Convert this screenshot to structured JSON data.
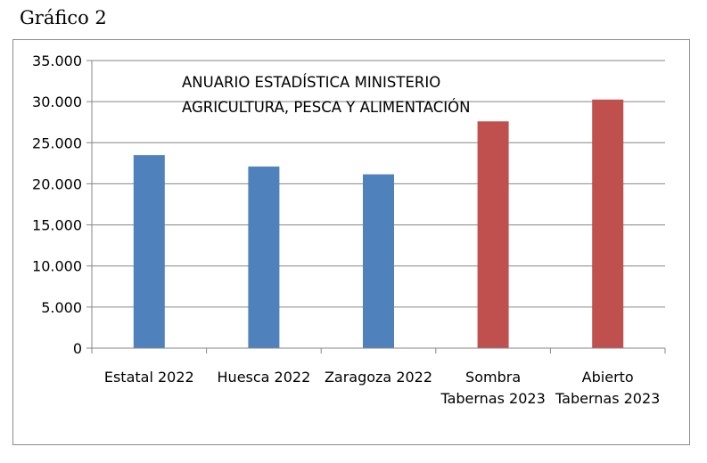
{
  "heading": "Gráfico 2",
  "chart_data": {
    "type": "bar",
    "title": "",
    "annotation": [
      "ANUARIO ESTADÍSTICA MINISTERIO",
      "AGRICULTURA, PESCA Y ALIMENTACIÓN"
    ],
    "categories": [
      [
        "Estatal 2022"
      ],
      [
        "Huesca 2022"
      ],
      [
        "Zaragoza 2022"
      ],
      [
        "Sombra",
        "Tabernas 2023"
      ],
      [
        "Abierto",
        "Tabernas 2023"
      ]
    ],
    "values": [
      23500,
      22100,
      21150,
      27600,
      30250
    ],
    "bar_colors": [
      "#4f81bd",
      "#4f81bd",
      "#4f81bd",
      "#c0504d",
      "#c0504d"
    ],
    "ylim": [
      0,
      35000
    ],
    "yticks": [
      0,
      5000,
      10000,
      15000,
      20000,
      25000,
      30000,
      35000
    ],
    "ytick_labels": [
      "0",
      "5.000",
      "10.000",
      "15.000",
      "20.000",
      "25.000",
      "30.000",
      "35.000"
    ],
    "grid": true,
    "xlabel": "",
    "ylabel": "",
    "colors": {
      "grid": "#868686",
      "axis": "#868686"
    }
  }
}
